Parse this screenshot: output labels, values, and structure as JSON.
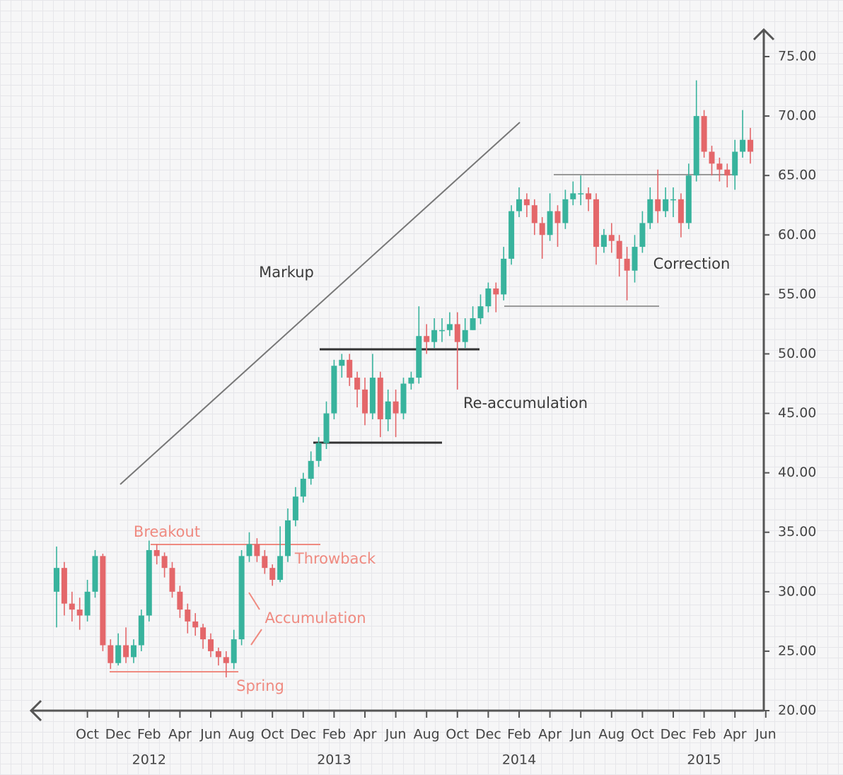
{
  "chart_data": {
    "type": "candlestick",
    "up_color": "#38b39d",
    "down_color": "#e4676a",
    "ylim": [
      20,
      75
    ],
    "yticks": [
      {
        "value": 20,
        "label": "20.00"
      },
      {
        "value": 25,
        "label": "25.00"
      },
      {
        "value": 30,
        "label": "30.00"
      },
      {
        "value": 35,
        "label": "35.00"
      },
      {
        "value": 40,
        "label": "40.00"
      },
      {
        "value": 45,
        "label": "45.00"
      },
      {
        "value": 50,
        "label": "50.00"
      },
      {
        "value": 55,
        "label": "55.00"
      },
      {
        "value": 60,
        "label": "60.00"
      },
      {
        "value": 65,
        "label": "65.00"
      },
      {
        "value": 70,
        "label": "70.00"
      },
      {
        "value": 75,
        "label": "75.00"
      }
    ],
    "categories": [
      null,
      null,
      null,
      null,
      "Oct",
      null,
      null,
      null,
      "Dec",
      null,
      null,
      null,
      "Feb",
      null,
      null,
      null,
      "Apr",
      null,
      null,
      null,
      "Jun",
      null,
      null,
      null,
      "Aug",
      null,
      null,
      null,
      "Oct",
      null,
      null,
      null,
      "Dec",
      null,
      null,
      null,
      "Feb",
      null,
      null,
      null,
      "Apr",
      null,
      null,
      null,
      "Jun",
      null,
      null,
      null,
      "Aug",
      null,
      null,
      null,
      "Oct",
      null,
      null,
      null,
      "Dec",
      null,
      null,
      null,
      "Feb",
      null,
      null,
      null,
      "Apr",
      null,
      null,
      null,
      "Jun",
      null,
      null,
      null,
      "Aug",
      null,
      null,
      null,
      "Oct",
      null,
      null,
      null,
      "Dec",
      null,
      null,
      null,
      "Feb",
      null,
      null,
      null,
      "Apr",
      null,
      null,
      null,
      "Jun"
    ],
    "category_years": [
      null,
      null,
      null,
      null,
      null,
      null,
      null,
      null,
      null,
      null,
      null,
      null,
      "2012",
      null,
      null,
      null,
      null,
      null,
      null,
      null,
      null,
      null,
      null,
      null,
      null,
      null,
      null,
      null,
      null,
      null,
      null,
      null,
      null,
      null,
      null,
      null,
      "2013",
      null,
      null,
      null,
      null,
      null,
      null,
      null,
      null,
      null,
      null,
      null,
      null,
      null,
      null,
      null,
      null,
      null,
      null,
      null,
      null,
      null,
      null,
      null,
      "2014",
      null,
      null,
      null,
      null,
      null,
      null,
      null,
      null,
      null,
      null,
      null,
      null,
      null,
      null,
      null,
      null,
      null,
      null,
      null,
      null,
      null,
      null,
      null,
      "2015",
      null,
      null,
      null,
      null,
      null,
      null,
      null,
      null
    ],
    "open": [
      30,
      32,
      29,
      28.5,
      28,
      30,
      33,
      25.5,
      24,
      25.5,
      24.5,
      25.5,
      28,
      33.5,
      33,
      32,
      30,
      28.5,
      27.5,
      27,
      26,
      25,
      24.5,
      24,
      26,
      33,
      34,
      33,
      32,
      31,
      33,
      36,
      38,
      39.5,
      41,
      42.5,
      45,
      49,
      49.5,
      48,
      47,
      45,
      48,
      44.5,
      46,
      45,
      47.5,
      48,
      51.5,
      51,
      52,
      52,
      52.5,
      51,
      52,
      53,
      54,
      55.5,
      55,
      58,
      62,
      63,
      62.5,
      61,
      60,
      62,
      61,
      63,
      63.5,
      63.5,
      63,
      59,
      60,
      59.5,
      58,
      57,
      59,
      61,
      63,
      62,
      63,
      63,
      61,
      65,
      70,
      67,
      66,
      65.5,
      65,
      67,
      68,
      null,
      null
    ],
    "high": [
      33.8,
      32.5,
      30,
      29.5,
      31,
      33.5,
      33.2,
      26,
      26.5,
      27,
      26,
      28.5,
      34.3,
      34,
      33.3,
      32.5,
      30.5,
      29,
      28.2,
      27.3,
      26.5,
      25.3,
      25,
      26.8,
      33.5,
      35,
      34.5,
      33.5,
      32.3,
      35.5,
      37,
      38.8,
      40,
      41.8,
      43,
      46,
      49.5,
      50,
      50,
      48.5,
      48,
      50,
      48.5,
      47,
      47,
      48,
      48.5,
      54,
      52.5,
      53,
      53,
      53.5,
      53.5,
      53,
      54,
      55,
      56,
      56,
      59,
      62.5,
      64,
      63.5,
      63,
      61.5,
      63.5,
      62.5,
      63.8,
      64.5,
      65,
      64,
      63.5,
      60.5,
      61,
      60,
      59,
      60,
      62,
      64,
      65.5,
      64,
      64,
      63.5,
      66,
      73,
      70.5,
      67.5,
      66.5,
      66,
      68,
      70.5,
      69,
      null,
      null
    ],
    "low": [
      27,
      28,
      27.5,
      26.8,
      27.5,
      29.5,
      25,
      23.5,
      23.8,
      24,
      24,
      25,
      27.5,
      32.3,
      31.2,
      29.5,
      27.8,
      26.5,
      26.3,
      25.2,
      24.5,
      23.8,
      22.8,
      23.5,
      25.5,
      32.5,
      32.5,
      31.5,
      30.5,
      30.8,
      32.5,
      35.5,
      37.5,
      39,
      40.5,
      42,
      44.5,
      48,
      47.3,
      45.5,
      44,
      44.5,
      43,
      43.5,
      43,
      44.5,
      47,
      47.5,
      50,
      50.5,
      51,
      51.5,
      47,
      50.5,
      52,
      52.5,
      53.5,
      53.5,
      54.5,
      57.5,
      61.5,
      61.5,
      60,
      58,
      59.5,
      59,
      60.5,
      62.5,
      62.5,
      62,
      57.5,
      58.5,
      58.5,
      56.5,
      54.5,
      56,
      58.5,
      60.5,
      61,
      61.5,
      61.5,
      59.8,
      60.5,
      64.5,
      66.5,
      65,
      64.5,
      64,
      63.8,
      66.5,
      66,
      null,
      null
    ],
    "close": [
      32,
      29,
      28.5,
      28,
      30,
      33,
      25.5,
      24,
      25.5,
      24.5,
      25.5,
      28,
      33.5,
      33,
      32,
      30,
      28.5,
      27.5,
      27,
      26,
      25,
      24.5,
      24,
      26,
      33,
      34,
      33,
      32,
      31,
      33,
      36,
      38,
      39.5,
      41,
      42.5,
      45,
      49,
      49.5,
      48,
      47,
      45,
      48,
      44.5,
      46,
      45,
      47.5,
      48,
      51.5,
      51,
      52,
      52,
      52.5,
      51,
      52,
      53,
      54,
      55.5,
      55,
      58,
      62,
      63,
      62.5,
      61,
      60,
      62,
      61,
      63,
      63.5,
      63.5,
      63,
      59,
      60,
      59.5,
      58,
      57,
      59,
      61,
      63,
      62,
      63,
      63,
      61,
      65,
      70,
      67,
      66,
      65.5,
      65,
      67,
      68,
      67,
      null,
      null
    ],
    "annotations": {
      "markup": "Markup",
      "correction": "Correction",
      "reaccumulation": "Re-accumulation",
      "breakout": "Breakout",
      "throwback": "Throwback",
      "accumulation": "Accumulation",
      "spring": "Spring"
    }
  }
}
